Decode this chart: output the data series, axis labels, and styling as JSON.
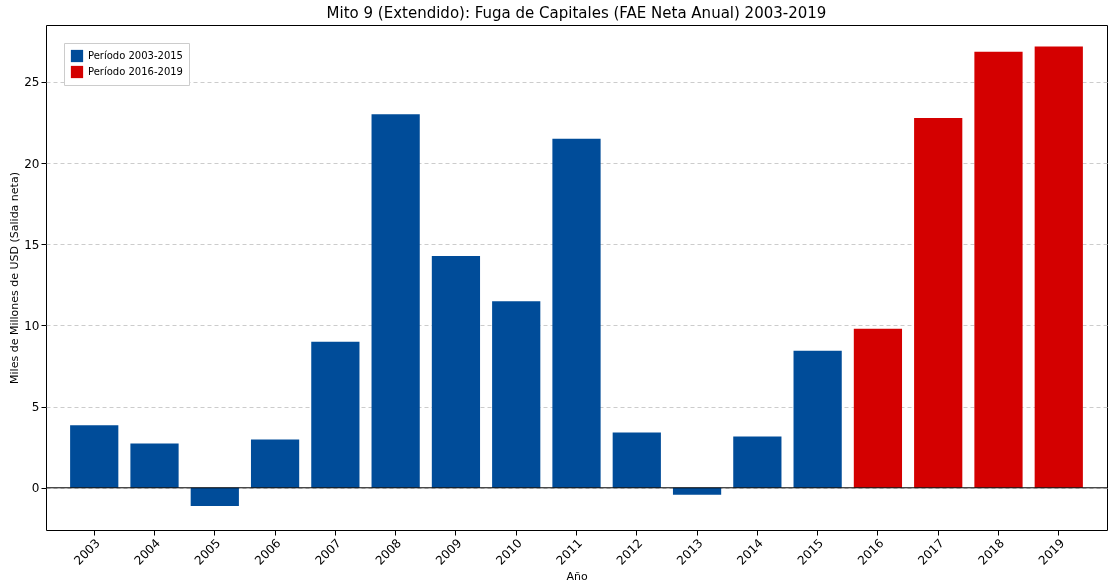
{
  "chart_data": {
    "type": "bar",
    "title": "Mito 9 (Extendido): Fuga de Capitales (FAE Neta Anual) 2003-2019",
    "xlabel": "Año",
    "ylabel": "Miles de Millones de USD (Salida neta)",
    "categories": [
      "2003",
      "2004",
      "2005",
      "2006",
      "2007",
      "2008",
      "2009",
      "2010",
      "2011",
      "2012",
      "2013",
      "2014",
      "2015",
      "2016",
      "2017",
      "2018",
      "2019"
    ],
    "series": [
      {
        "name": "Período 2003-2015",
        "color": "#004c99",
        "values": [
          3.85,
          2.73,
          -1.12,
          2.98,
          9.0,
          23.0,
          14.27,
          11.48,
          21.5,
          3.41,
          -0.43,
          3.16,
          8.44,
          null,
          null,
          null,
          null
        ]
      },
      {
        "name": "Período 2016-2019",
        "color": "#d40000",
        "values": [
          null,
          null,
          null,
          null,
          null,
          null,
          null,
          null,
          null,
          null,
          null,
          null,
          null,
          9.8,
          22.77,
          26.86,
          27.17
        ]
      }
    ],
    "ylim": [
      -2.6,
      28.5
    ],
    "yticks": [
      0,
      5,
      10,
      15,
      20,
      25
    ],
    "grid": "y",
    "legend": "top left",
    "ref_lines": [
      {
        "axis": "y",
        "value": 0,
        "color": "#000000"
      }
    ]
  }
}
